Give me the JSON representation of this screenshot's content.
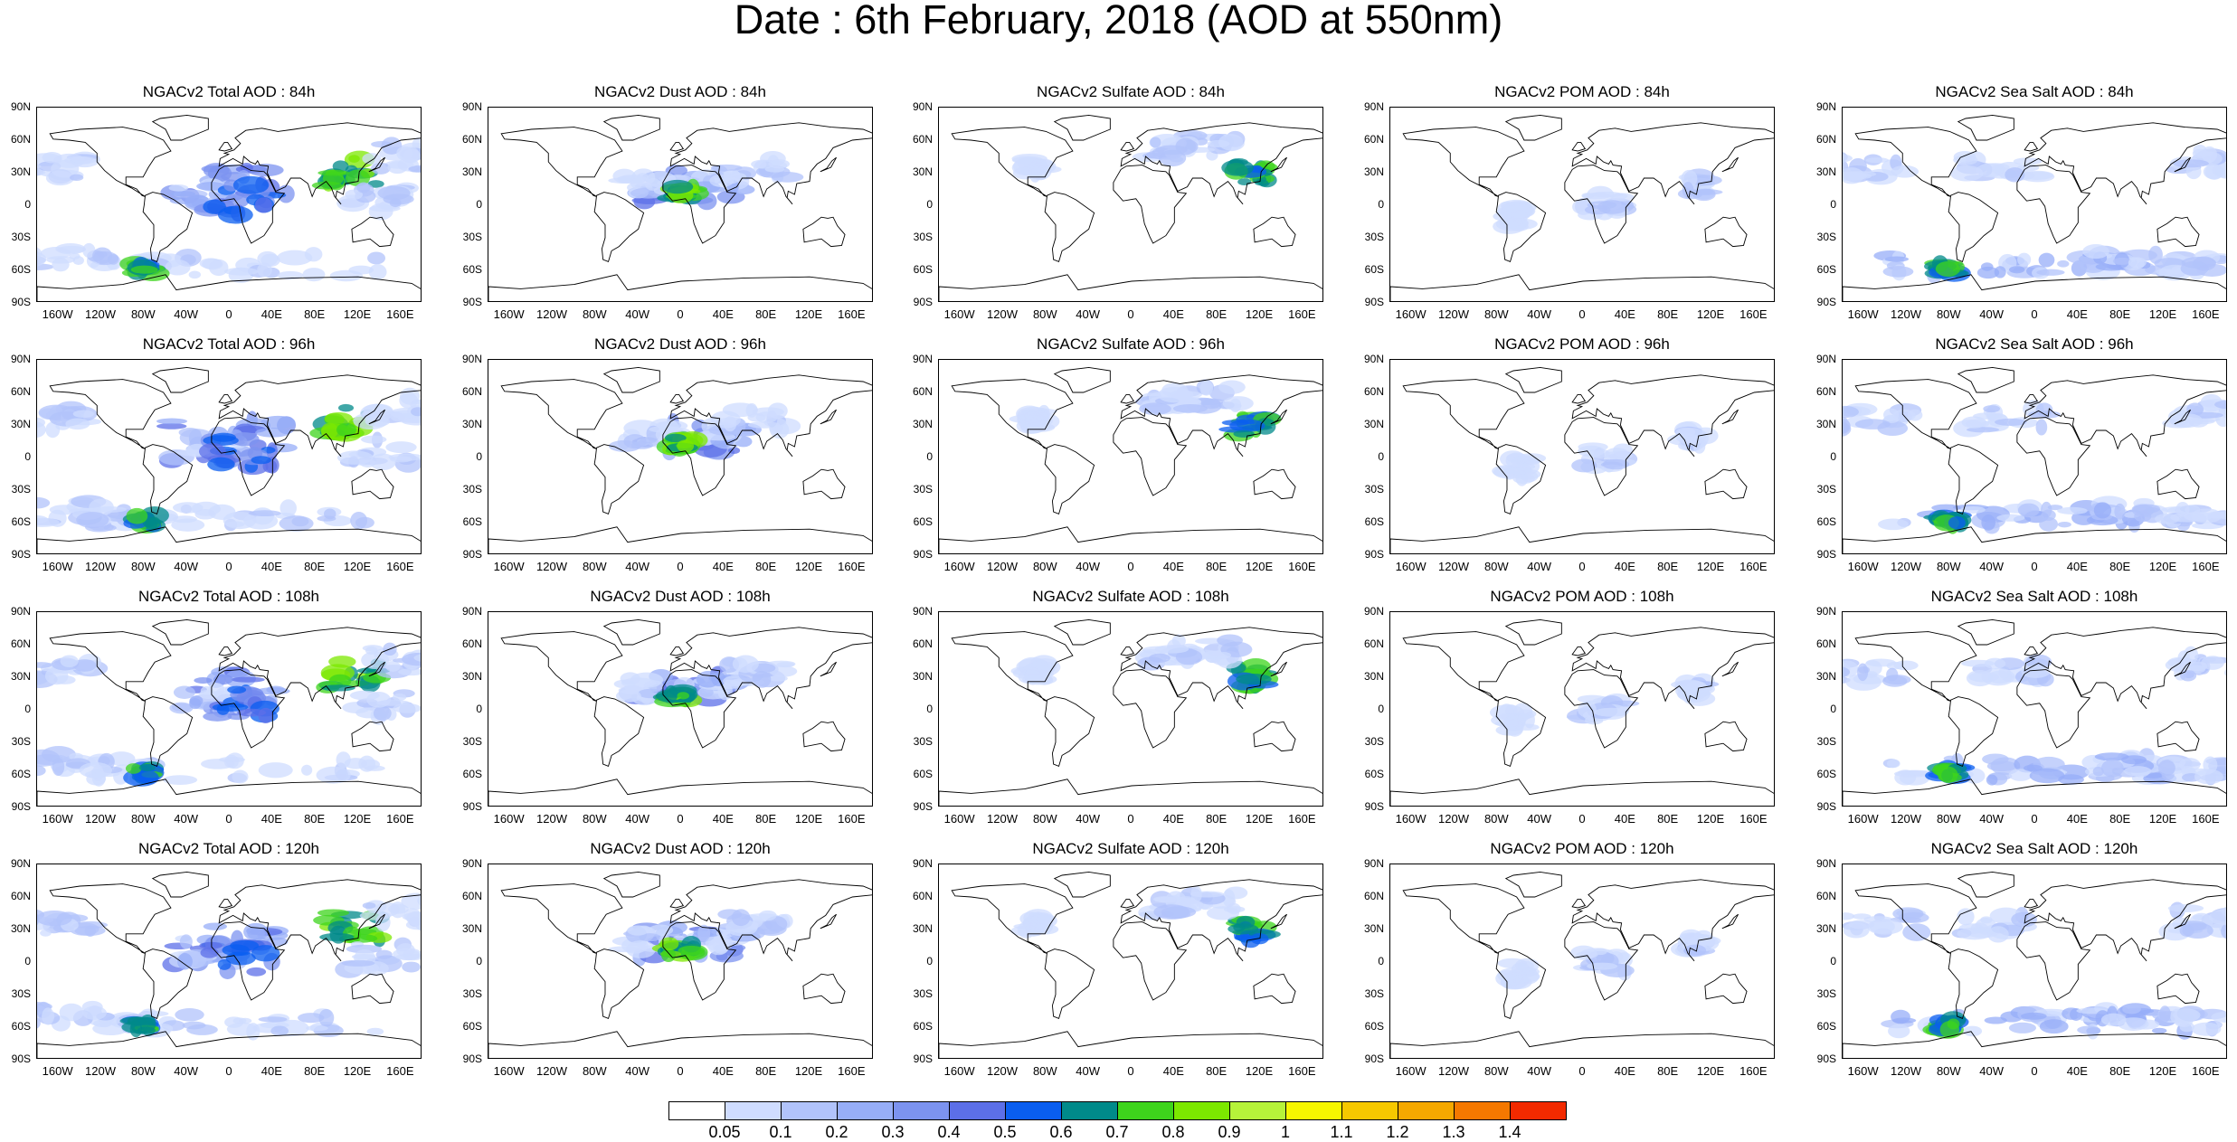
{
  "title": "Date : 6th February, 2018 (AOD at 550nm)",
  "chart_data": {
    "type": "heatmap",
    "variable": "AOD at 550nm",
    "date": "6th February, 2018",
    "rows": [
      "84h",
      "96h",
      "108h",
      "120h"
    ],
    "columns": [
      "Total",
      "Dust",
      "Sulfate",
      "POM",
      "Sea Salt"
    ],
    "panel_titles": [
      [
        "NGACv2 Total AOD : 84h",
        "NGACv2 Dust AOD : 84h",
        "NGACv2 Sulfate AOD : 84h",
        "NGACv2 POM AOD : 84h",
        "NGACv2 Sea Salt AOD : 84h"
      ],
      [
        "NGACv2 Total AOD : 96h",
        "NGACv2 Dust AOD : 96h",
        "NGACv2 Sulfate AOD : 96h",
        "NGACv2 POM AOD : 96h",
        "NGACv2 Sea Salt AOD : 96h"
      ],
      [
        "NGACv2 Total AOD : 108h",
        "NGACv2 Dust AOD : 108h",
        "NGACv2 Sulfate AOD : 108h",
        "NGACv2 POM AOD : 108h",
        "NGACv2 Sea Salt AOD : 108h"
      ],
      [
        "NGACv2 Total AOD : 120h",
        "NGACv2 Dust AOD : 120h",
        "NGACv2 Sulfate AOD : 120h",
        "NGACv2 POM AOD : 120h",
        "NGACv2 Sea Salt  AOD : 120h"
      ]
    ],
    "y_ticks": [
      "90N",
      "60N",
      "30N",
      "0",
      "30S",
      "60S",
      "90S"
    ],
    "x_ticks": [
      "160W",
      "120W",
      "80W",
      "40W",
      "0",
      "40E",
      "80E",
      "120E",
      "160E"
    ],
    "xlim": [
      -180,
      180
    ],
    "ylim": [
      -90,
      90
    ],
    "colorbar": {
      "levels": [
        "0.05",
        "0.1",
        "0.2",
        "0.3",
        "0.4",
        "0.5",
        "0.6",
        "0.7",
        "0.8",
        "0.9",
        "1",
        "1.1",
        "1.2",
        "1.3",
        "1.4"
      ],
      "colors": [
        "#ffffff",
        "#cfdcff",
        "#b1c3fb",
        "#97aef8",
        "#7c93f0",
        "#5c6fe8",
        "#0a5ef0",
        "#008a8a",
        "#3ed41c",
        "#7ce800",
        "#b6f33a",
        "#f6f600",
        "#f6c800",
        "#f5a800",
        "#f57800",
        "#f22a00"
      ]
    }
  }
}
